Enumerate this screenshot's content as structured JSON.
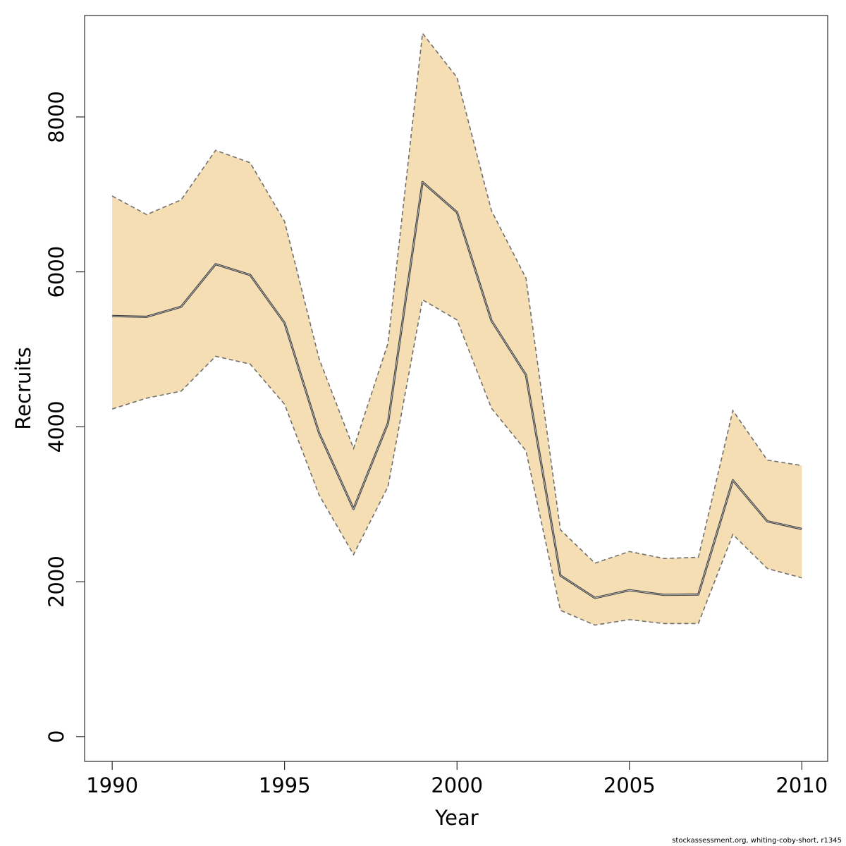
{
  "chart_data": {
    "type": "area",
    "title": "",
    "xlabel": "Year",
    "ylabel": "Recruits",
    "xlim": [
      1989.2,
      2010.75
    ],
    "ylim": [
      -320,
      9310
    ],
    "x_ticks": [
      1990,
      1995,
      2000,
      2005,
      2010
    ],
    "y_ticks": [
      0,
      2000,
      4000,
      6000,
      8000
    ],
    "grid": false,
    "legend": "none",
    "x": [
      1990,
      1991,
      1992,
      1993,
      1994,
      1995,
      1996,
      1997,
      1998,
      1999,
      2000,
      2001,
      2002,
      2003,
      2004,
      2005,
      2006,
      2007,
      2008,
      2009,
      2010
    ],
    "series": [
      {
        "role": "estimate",
        "values": [
          5430,
          5420,
          5550,
          6100,
          5960,
          5340,
          3920,
          2940,
          4050,
          7160,
          6770,
          5370,
          4670,
          2080,
          1790,
          1890,
          1830,
          1835,
          3310,
          2780,
          2680
        ]
      },
      {
        "role": "upper",
        "values": [
          6980,
          6740,
          6930,
          7570,
          7410,
          6650,
          4880,
          3720,
          5080,
          9080,
          8510,
          6790,
          5920,
          2670,
          2240,
          2390,
          2300,
          2315,
          4210,
          3570,
          3500
        ]
      },
      {
        "role": "lower",
        "values": [
          4230,
          4370,
          4460,
          4910,
          4810,
          4290,
          3120,
          2350,
          3230,
          5640,
          5380,
          4240,
          3690,
          1630,
          1440,
          1510,
          1460,
          1460,
          2610,
          2170,
          2050
        ]
      }
    ],
    "colors": {
      "band": "#f5deb3",
      "line": "#404040",
      "bounds": "#707070"
    }
  },
  "footer": {
    "source": "stockassessment.org, whiting-coby-short, r1345"
  }
}
